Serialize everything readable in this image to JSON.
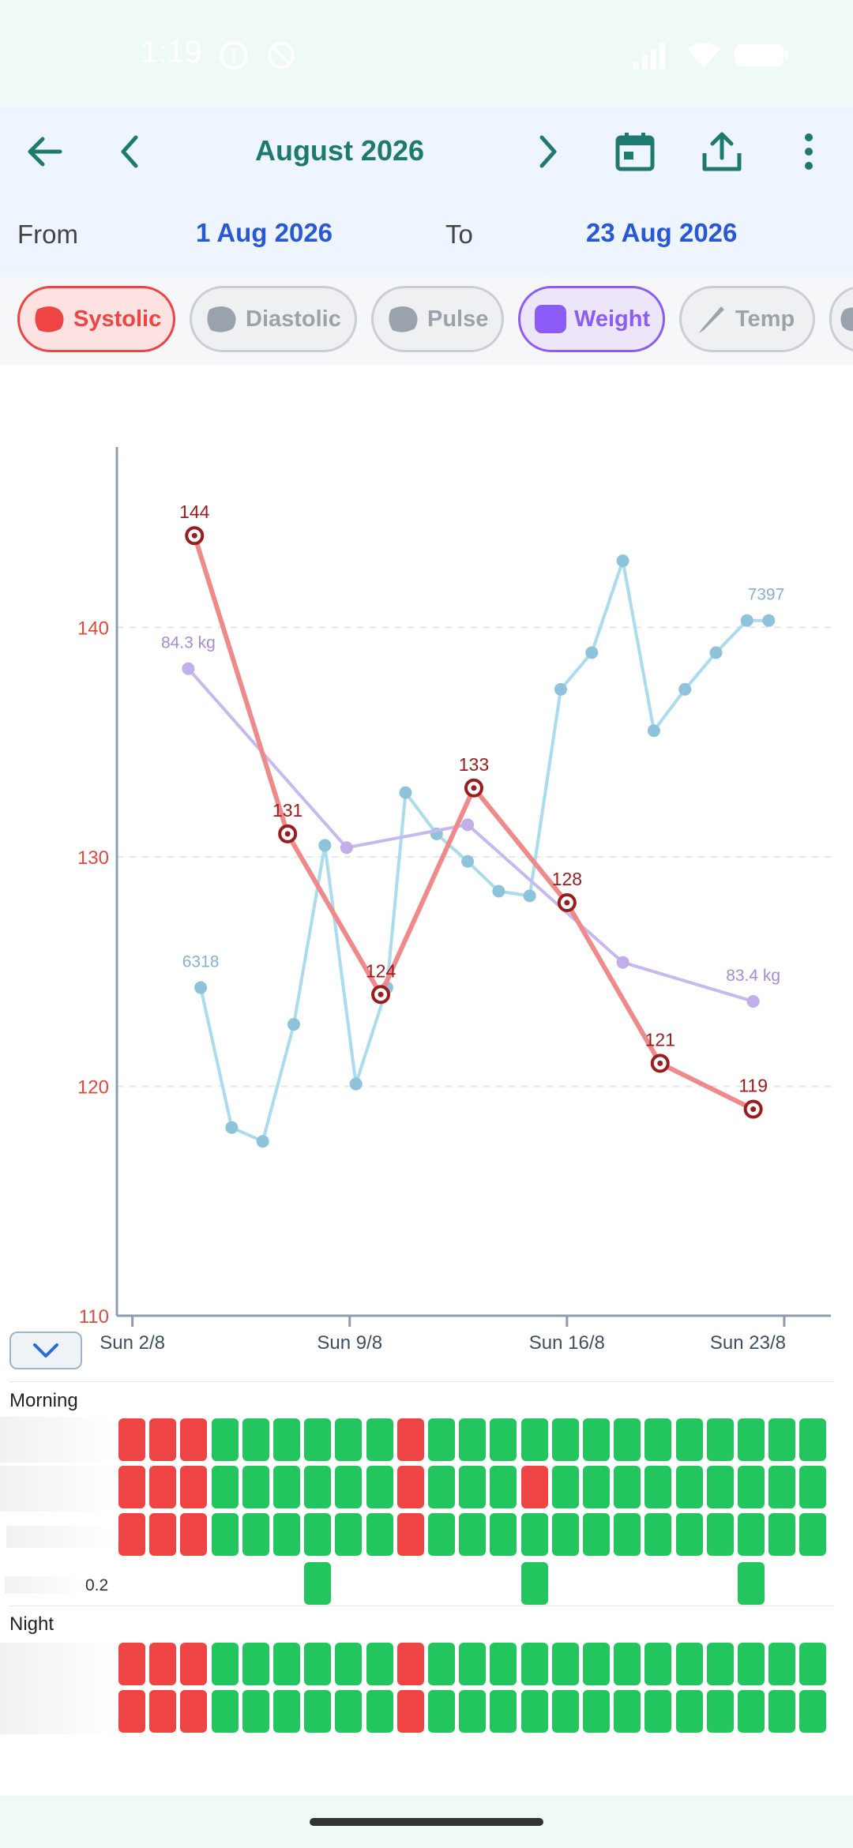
{
  "status_bar": {
    "time": "1:19"
  },
  "header": {
    "title": "August 2026",
    "from_label": "From",
    "from_value": "1 Aug 2026",
    "to_label": "To",
    "to_value": "23 Aug 2026",
    "icons": [
      "back-arrow-icon",
      "chevron-left-icon",
      "chevron-right-icon",
      "calendar-icon",
      "share-icon",
      "more-vert-icon"
    ]
  },
  "chips": [
    {
      "label": "Systolic",
      "active": true,
      "color": "#ef4444"
    },
    {
      "label": "Diastolic",
      "active": false,
      "color": "#9aa3ab"
    },
    {
      "label": "Pulse",
      "active": false,
      "color": "#9aa3ab"
    },
    {
      "label": "Weight",
      "active": true,
      "color": "#8b5cf6"
    },
    {
      "label": "Temp",
      "active": false,
      "color": "#9aa3ab"
    }
  ],
  "chart_data": {
    "type": "line",
    "ylim": [
      110,
      148
    ],
    "y_ticks": [
      "110",
      "120",
      "130",
      "140"
    ],
    "x_ticks": [
      "Sun 2/8",
      "Sun 9/8",
      "Sun 16/8",
      "Sun 23/8"
    ],
    "series": [
      {
        "key": "systolic",
        "color": "#f08a8a",
        "x": [
          4,
          7,
          10,
          13,
          16,
          19,
          22
        ],
        "y": [
          144,
          131,
          124,
          133,
          128,
          121,
          119
        ],
        "labels": [
          "144",
          "131",
          "124",
          "133",
          "128",
          "121",
          "119"
        ]
      },
      {
        "key": "weight",
        "color": "#c8b8f0",
        "x": [
          3.8,
          8.9,
          12.8,
          17.8,
          22
        ],
        "y": [
          138.2,
          130.4,
          131.4,
          125.4,
          123.7
        ],
        "end_labels": [
          "84.3 kg",
          "83.4 kg"
        ]
      },
      {
        "key": "steps",
        "color": "#a9dced",
        "x": [
          4.2,
          5.2,
          6.2,
          7.2,
          8.2,
          9.2,
          10.2,
          10.8,
          11.8,
          12.8,
          13.8,
          14.8,
          15.8,
          16.8,
          17.8,
          18.8,
          19.8,
          20.8,
          21.8,
          22.5
        ],
        "y": [
          124.3,
          118.2,
          117.6,
          122.7,
          130.5,
          120.1,
          124.3,
          132.8,
          131.0,
          129.8,
          128.5,
          128.3,
          137.3,
          138.9,
          142.9,
          135.5,
          137.3,
          138.9,
          140.3,
          140.3
        ],
        "end_labels": [
          "6318",
          "7397"
        ]
      }
    ]
  },
  "grid": {
    "morning_label": "Morning",
    "night_label": "Night",
    "small_value": "0.2",
    "morning_rows": [
      "RRRGGGGGGRGGGGGGGGGGGGG",
      "RRRGGGGGGRGGGRGGGGGGGGG",
      "RRRGGGGGGRGGGGGGGGGGGGG"
    ],
    "sparse_row": "......G......G......G..",
    "night_rows": [
      "RRRGGGGGGRGGGGGGGGGGGGG",
      "RRRGGGGGGRGGGGGGGGGGGGG"
    ],
    "red": "#ef4444",
    "green": "#22c55e"
  }
}
